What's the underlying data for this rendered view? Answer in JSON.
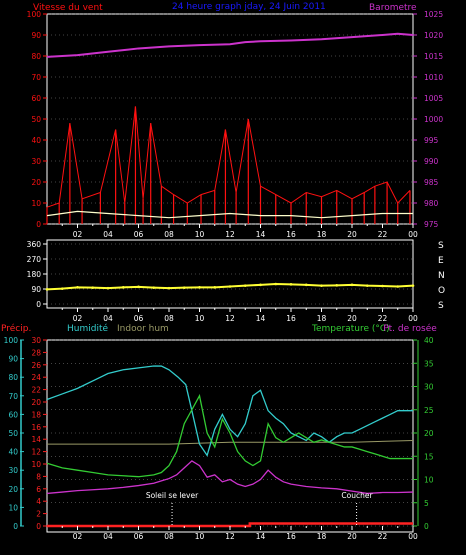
{
  "colors": {
    "background": "#000000",
    "frame": "#ffffff",
    "grid": "#aaaaaa",
    "wind_speed": "#ff1111",
    "wind_avg": "#ffffcc",
    "barometer": "#cc33cc",
    "title": "#1a1aff",
    "direction": "#ffff33",
    "precip": "#ff2222",
    "humidity": "#33cccc",
    "indoor_hum": "#999966",
    "temperature": "#33cc33",
    "dewpoint": "#cc33cc",
    "annotation": "#ffffff"
  },
  "header": {
    "title": "24 heure graph jday, 24 Juin 2011",
    "left_label": "Vitesse du vent",
    "right_label": "Barometre"
  },
  "panel2": {
    "direction_letters": [
      "S",
      "E",
      "N",
      "O",
      "S"
    ]
  },
  "panel3": {
    "precip_label": "Précip.",
    "humidity_label": "Humidité",
    "indoor_label": "Indoor hum",
    "temp_label": "Temperature (°C)",
    "dew_label": "Pt. de rosée",
    "sunrise_label": "Soleil se lever",
    "sunset_label": "Coucher"
  },
  "chart_data": [
    {
      "type": "line",
      "title": "24 heure graph jday, 24 Juin 2011",
      "x_ticks": [
        "02",
        "04",
        "06",
        "08",
        "10",
        "12",
        "14",
        "16",
        "18",
        "20",
        "22",
        "00"
      ],
      "left_axis": {
        "label": "Vitesse du vent",
        "ticks": [
          0,
          10,
          20,
          30,
          40,
          50,
          60,
          70,
          80,
          90,
          100
        ],
        "ylim": [
          0,
          100
        ]
      },
      "right_axis": {
        "label": "Barometre",
        "ticks": [
          975,
          980,
          985,
          990,
          995,
          1000,
          1005,
          1010,
          1015,
          1020,
          1025
        ],
        "ylim": [
          975,
          1025
        ]
      },
      "series": [
        {
          "name": "Barometre",
          "axis": "right",
          "x": [
            0,
            2,
            4,
            6,
            8,
            10,
            12,
            13,
            14,
            16,
            18,
            20,
            22,
            23,
            24
          ],
          "values": [
            1014.8,
            1015.2,
            1016.0,
            1016.8,
            1017.3,
            1017.6,
            1017.8,
            1018.3,
            1018.5,
            1018.7,
            1019.0,
            1019.5,
            1020.0,
            1020.3,
            1020.0
          ]
        },
        {
          "name": "Vitesse du vent",
          "axis": "left",
          "x": [
            0,
            0.8,
            1.5,
            2.3,
            3.5,
            4.5,
            5.1,
            5.8,
            6.3,
            6.8,
            7.5,
            8.3,
            9.2,
            10.1,
            11,
            11.7,
            12.4,
            13.2,
            14,
            15,
            16,
            17,
            18,
            19,
            20,
            20.8,
            21.5,
            22.3,
            23,
            23.8
          ],
          "values": [
            8,
            10,
            48,
            12,
            15,
            45,
            10,
            56,
            12,
            48,
            18,
            14,
            10,
            14,
            16,
            45,
            15,
            50,
            18,
            14,
            10,
            15,
            13,
            16,
            12,
            15,
            18,
            20,
            10,
            16
          ]
        },
        {
          "name": "",
          "axis": "left",
          "x": [
            0,
            2,
            4,
            6,
            8,
            10,
            12,
            14,
            16,
            18,
            20,
            22,
            24
          ],
          "values": [
            4,
            6,
            5,
            4,
            3,
            4,
            5,
            4,
            4,
            3,
            4,
            5,
            5
          ]
        }
      ]
    },
    {
      "type": "scatter",
      "x_ticks": [
        "02",
        "04",
        "06",
        "08",
        "10",
        "12",
        "14",
        "16",
        "18",
        "20",
        "22",
        "00"
      ],
      "left_axis": {
        "ticks": [
          0,
          90,
          180,
          270,
          360
        ],
        "ylim": [
          0,
          360
        ]
      },
      "series": [
        {
          "name": "",
          "x": [
            0,
            1,
            2,
            3,
            4,
            5,
            6,
            7,
            8,
            9,
            10,
            11,
            12,
            13,
            14,
            15,
            16,
            17,
            18,
            19,
            20,
            21,
            22,
            23,
            24
          ],
          "values": [
            88,
            92,
            100,
            98,
            95,
            100,
            103,
            98,
            95,
            98,
            100,
            100,
            105,
            110,
            115,
            120,
            118,
            115,
            110,
            112,
            115,
            110,
            108,
            105,
            110
          ]
        }
      ]
    },
    {
      "type": "line",
      "x_ticks": [
        "02",
        "04",
        "06",
        "08",
        "10",
        "12",
        "14",
        "16",
        "18",
        "20",
        "22",
        "00"
      ],
      "left_axis_humidity": {
        "label": "Humidité",
        "ticks": [
          0,
          10,
          20,
          30,
          40,
          50,
          60,
          70,
          80,
          90,
          100
        ],
        "ylim": [
          0,
          100
        ]
      },
      "left_axis_precip": {
        "label": "Précip.",
        "ticks": [
          0,
          2,
          4,
          6,
          8,
          10,
          12,
          14,
          16,
          18,
          20,
          22,
          24,
          26,
          28,
          30
        ],
        "ylim": [
          0,
          30
        ]
      },
      "right_axis": {
        "label": "Temperature (°C)",
        "ticks": [
          0,
          5,
          10,
          15,
          20,
          25,
          30,
          35,
          40
        ],
        "ylim": [
          0,
          40
        ]
      },
      "annotations": [
        {
          "text": "Soleil se lever",
          "x": 8.2
        },
        {
          "text": "Coucher",
          "x": 20.3
        }
      ],
      "series": [
        {
          "name": "Humidité",
          "axis": "humidity",
          "x": [
            0,
            1,
            2,
            3,
            4,
            5,
            6,
            7,
            7.5,
            8,
            8.6,
            9.1,
            9.5,
            10,
            10.5,
            11,
            11.5,
            12,
            12.5,
            13,
            13.5,
            14,
            14.5,
            15,
            15.5,
            16,
            16.5,
            17,
            17.5,
            18,
            18.5,
            19,
            19.5,
            20,
            20.5,
            21,
            21.5,
            22,
            22.5,
            23,
            23.5,
            24
          ],
          "values": [
            68,
            71,
            74,
            78,
            82,
            84,
            85,
            86,
            86,
            84,
            80,
            76,
            62,
            44,
            38,
            52,
            60,
            52,
            48,
            55,
            70,
            73,
            62,
            58,
            55,
            50,
            48,
            46,
            50,
            48,
            45,
            48,
            50,
            50,
            52,
            54,
            56,
            58,
            60,
            62,
            62,
            62
          ]
        },
        {
          "name": "Indoor hum",
          "axis": "humidity",
          "x": [
            0,
            4,
            8,
            12,
            16,
            20,
            24
          ],
          "values": [
            44,
            44,
            44,
            45,
            45,
            45,
            46
          ]
        },
        {
          "name": "Temperature (°C)",
          "axis": "temp",
          "x": [
            0,
            1,
            2,
            3,
            4,
            5,
            6,
            7,
            7.5,
            8,
            8.5,
            9,
            9.5,
            10,
            10.5,
            11,
            11.5,
            12,
            12.5,
            13,
            13.5,
            14,
            14.5,
            15,
            15.5,
            16,
            16.5,
            17,
            17.5,
            18,
            18.5,
            19,
            19.5,
            20,
            20.5,
            21,
            21.5,
            22,
            22.5,
            23,
            23.5,
            24
          ],
          "values": [
            13.5,
            12.5,
            12,
            11.5,
            11,
            10.8,
            10.6,
            11,
            11.5,
            13,
            16,
            22,
            25,
            28,
            20,
            17,
            23,
            20,
            16,
            14,
            13,
            14,
            22,
            19,
            18,
            19,
            20,
            19,
            18,
            18.5,
            18,
            17.5,
            17,
            17,
            16.5,
            16,
            15.5,
            15,
            14.5,
            14.5,
            14.5,
            14.5
          ]
        },
        {
          "name": "Pt. de rosée",
          "axis": "temp",
          "x": [
            0,
            1,
            2,
            3,
            4,
            5,
            6,
            7,
            7.5,
            8,
            8.5,
            9,
            9.5,
            10,
            10.5,
            11,
            11.5,
            12,
            12.5,
            13,
            13.5,
            14,
            14.5,
            15,
            15.5,
            16,
            17,
            18,
            19,
            20,
            21,
            22,
            23,
            24
          ],
          "values": [
            7,
            7.3,
            7.6,
            7.8,
            8,
            8.3,
            8.7,
            9.2,
            9.7,
            10.2,
            11,
            12.5,
            14,
            13,
            10.5,
            11,
            9.5,
            10,
            9,
            8.5,
            9,
            10,
            12,
            10.5,
            9.5,
            9,
            8.5,
            8.2,
            8,
            7.5,
            7,
            7.2,
            7.2,
            7.3
          ]
        },
        {
          "name": "Précip.",
          "axis": "precip",
          "x": [
            0,
            13.3,
            13.3,
            24
          ],
          "values": [
            0,
            0,
            0.4,
            0.4
          ]
        }
      ]
    }
  ]
}
